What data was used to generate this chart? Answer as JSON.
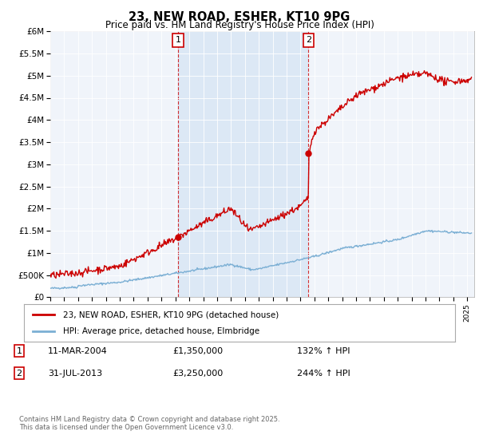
{
  "title": "23, NEW ROAD, ESHER, KT10 9PG",
  "subtitle": "Price paid vs. HM Land Registry's House Price Index (HPI)",
  "ylim": [
    0,
    6000000
  ],
  "yticks": [
    0,
    500000,
    1000000,
    1500000,
    2000000,
    2500000,
    3000000,
    3500000,
    4000000,
    4500000,
    5000000,
    5500000,
    6000000
  ],
  "line1_color": "#cc0000",
  "line2_color": "#7bafd4",
  "shading_color": "#dce8f5",
  "background_color": "#ffffff",
  "plot_bg_color": "#f0f4fa",
  "grid_color": "#ffffff",
  "annotation1": {
    "label": "1",
    "date_x": 2004.2,
    "y": 1350000,
    "text_date": "11-MAR-2004",
    "text_price": "£1,350,000",
    "text_hpi": "132% ↑ HPI"
  },
  "annotation2": {
    "label": "2",
    "date_x": 2013.58,
    "y": 3250000,
    "text_date": "31-JUL-2013",
    "text_price": "£3,250,000",
    "text_hpi": "244% ↑ HPI"
  },
  "legend_line1": "23, NEW ROAD, ESHER, KT10 9PG (detached house)",
  "legend_line2": "HPI: Average price, detached house, Elmbridge",
  "footer": "Contains HM Land Registry data © Crown copyright and database right 2025.\nThis data is licensed under the Open Government Licence v3.0.",
  "xmin": 1995,
  "xmax": 2025.5
}
